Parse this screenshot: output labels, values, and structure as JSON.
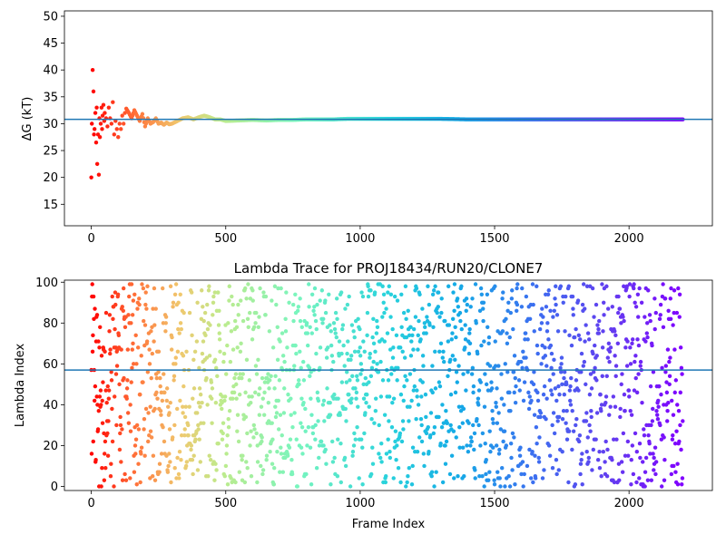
{
  "chart_data": [
    {
      "type": "scatter",
      "title": "",
      "xlabel": "",
      "ylabel": "ΔG (kT)",
      "xlim": [
        -100,
        2310
      ],
      "ylim": [
        11,
        51
      ],
      "xticks": [
        0,
        500,
        1000,
        1500,
        2000
      ],
      "yticks": [
        15,
        20,
        25,
        30,
        35,
        40,
        45,
        50
      ],
      "hline": 30.8,
      "colormap": "rainbow (red at frame 0 to violet at frame 2200)",
      "description_of_series": "running free-energy estimate per frame",
      "points": [
        [
          0,
          20
        ],
        [
          2,
          30
        ],
        [
          5,
          40
        ],
        [
          8,
          36
        ],
        [
          10,
          28
        ],
        [
          12,
          29
        ],
        [
          15,
          32
        ],
        [
          18,
          26.5
        ],
        [
          20,
          33
        ],
        [
          22,
          22.5
        ],
        [
          25,
          28
        ],
        [
          28,
          20.5
        ],
        [
          30,
          31
        ],
        [
          32,
          27.5
        ],
        [
          35,
          30
        ],
        [
          38,
          33
        ],
        [
          40,
          29
        ],
        [
          42,
          31.5
        ],
        [
          45,
          33.5
        ],
        [
          48,
          30.5
        ],
        [
          50,
          32
        ],
        [
          55,
          31
        ],
        [
          60,
          29.5
        ],
        [
          65,
          33
        ],
        [
          70,
          31
        ],
        [
          75,
          30
        ],
        [
          80,
          34
        ],
        [
          85,
          28
        ],
        [
          90,
          30.5
        ],
        [
          95,
          29
        ],
        [
          100,
          27.5
        ],
        [
          105,
          30
        ],
        [
          110,
          29
        ],
        [
          115,
          31.5
        ],
        [
          120,
          30
        ],
        [
          125,
          32
        ],
        [
          130,
          32.8
        ],
        [
          140,
          32
        ],
        [
          150,
          31
        ],
        [
          160,
          32.5
        ],
        [
          170,
          31.5
        ],
        [
          180,
          30.5
        ],
        [
          190,
          31.8
        ],
        [
          200,
          29.5
        ],
        [
          210,
          31
        ],
        [
          220,
          30
        ],
        [
          230,
          30.3
        ],
        [
          240,
          31
        ],
        [
          250,
          30
        ],
        [
          260,
          30.2
        ],
        [
          270,
          29.8
        ],
        [
          280,
          30.2
        ],
        [
          290,
          29.9
        ],
        [
          300,
          30
        ],
        [
          320,
          30.5
        ],
        [
          340,
          31
        ],
        [
          360,
          31.2
        ],
        [
          380,
          30.8
        ],
        [
          400,
          31.2
        ],
        [
          420,
          31.5
        ],
        [
          440,
          31.2
        ],
        [
          460,
          30.8
        ],
        [
          480,
          30.8
        ],
        [
          500,
          30.5
        ],
        [
          550,
          30.6
        ],
        [
          600,
          30.7
        ],
        [
          650,
          30.6
        ],
        [
          700,
          30.7
        ],
        [
          750,
          30.7
        ],
        [
          800,
          30.8
        ],
        [
          850,
          30.8
        ],
        [
          900,
          30.8
        ],
        [
          950,
          30.9
        ],
        [
          1000,
          30.9
        ],
        [
          1100,
          30.9
        ],
        [
          1200,
          30.9
        ],
        [
          1300,
          30.9
        ],
        [
          1400,
          30.8
        ],
        [
          1500,
          30.8
        ],
        [
          1600,
          30.8
        ],
        [
          1700,
          30.8
        ],
        [
          1800,
          30.8
        ],
        [
          1900,
          30.8
        ],
        [
          2000,
          30.8
        ],
        [
          2100,
          30.8
        ],
        [
          2200,
          30.8
        ]
      ]
    },
    {
      "type": "scatter",
      "title": "Lambda Trace for PROJ18434/RUN20/CLONE7",
      "xlabel": "Frame Index",
      "ylabel": "Lambda Index",
      "xlim": [
        -100,
        2310
      ],
      "ylim": [
        -2,
        101
      ],
      "xticks": [
        0,
        500,
        1000,
        1500,
        2000
      ],
      "yticks": [
        0,
        20,
        40,
        60,
        80,
        100
      ],
      "hline": 57,
      "colormap": "rainbow (red at frame 0 to violet at frame 2200)",
      "frames": 2200,
      "lambda_range": [
        0,
        99
      ],
      "description_of_series": "lambda index visited at each frame, roughly uniform over 0-99"
    }
  ]
}
